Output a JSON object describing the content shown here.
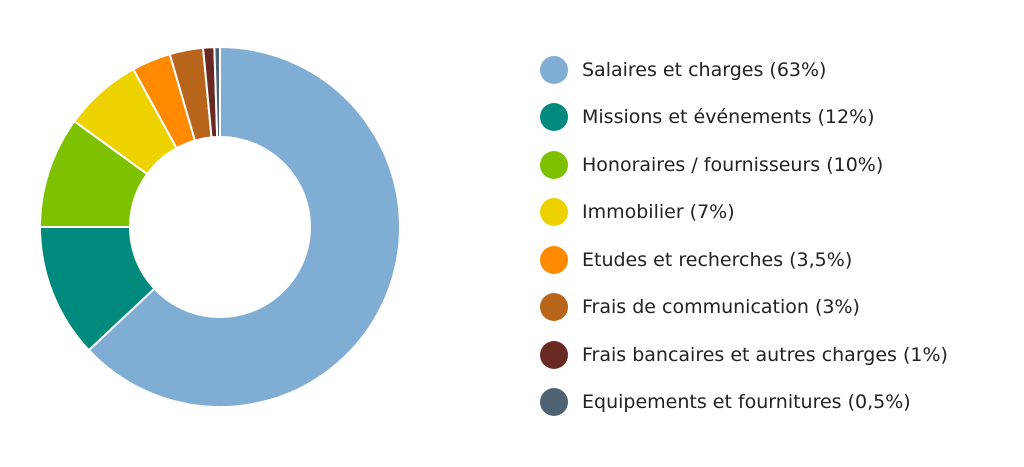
{
  "chart_data": {
    "type": "pie",
    "donut": true,
    "title": "",
    "legend_position": "right",
    "slices": [
      {
        "label": "Salaires et charges (63%)",
        "value": 63,
        "color": "#7fadd3"
      },
      {
        "label": "Missions et événements (12%)",
        "value": 12,
        "color": "#008a7e"
      },
      {
        "label": "Honoraires / fournisseurs (10%)",
        "value": 10,
        "color": "#7dc100"
      },
      {
        "label": "Immobilier (7%)",
        "value": 7,
        "color": "#eed200"
      },
      {
        "label": "Etudes et recherches (3,5%)",
        "value": 3.5,
        "color": "#ff8a00"
      },
      {
        "label": "Frais de communication (3%)",
        "value": 3,
        "color": "#b8651b"
      },
      {
        "label": "Frais bancaires et autres charges (1%)",
        "value": 1,
        "color": "#6a2a24"
      },
      {
        "label": "Equipements et fournitures (0,5%)",
        "value": 0.5,
        "color": "#4f6273"
      }
    ]
  }
}
